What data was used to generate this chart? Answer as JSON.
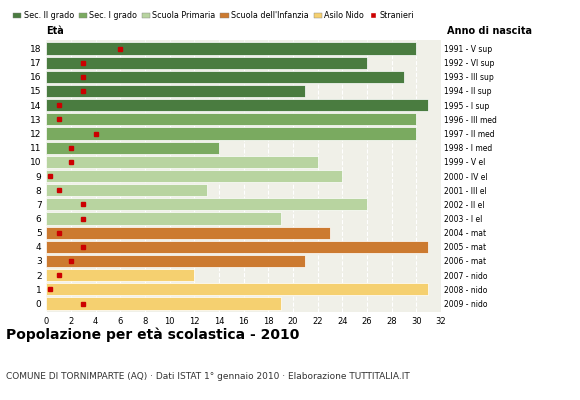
{
  "ages": [
    18,
    17,
    16,
    15,
    14,
    13,
    12,
    11,
    10,
    9,
    8,
    7,
    6,
    5,
    4,
    3,
    2,
    1,
    0
  ],
  "bar_values": [
    30,
    26,
    29,
    21,
    31,
    30,
    30,
    14,
    22,
    24,
    13,
    26,
    19,
    23,
    31,
    21,
    12,
    31,
    19
  ],
  "bar_colors": [
    "#4a7c40",
    "#4a7c40",
    "#4a7c40",
    "#4a7c40",
    "#4a7c40",
    "#7aaa60",
    "#7aaa60",
    "#7aaa60",
    "#b8d4a0",
    "#b8d4a0",
    "#b8d4a0",
    "#b8d4a0",
    "#b8d4a0",
    "#cc7a30",
    "#cc7a30",
    "#cc7a30",
    "#f5d070",
    "#f5d070",
    "#f5d070"
  ],
  "stranieri_values": [
    6,
    3,
    3,
    3,
    1,
    1,
    4,
    2,
    2,
    0.3,
    1,
    3,
    3,
    1,
    3,
    2,
    1,
    0.3,
    3
  ],
  "right_labels": [
    "1991 - V sup",
    "1992 - VI sup",
    "1993 - III sup",
    "1994 - II sup",
    "1995 - I sup",
    "1996 - III med",
    "1997 - II med",
    "1998 - I med",
    "1999 - V el",
    "2000 - IV el",
    "2001 - III el",
    "2002 - II el",
    "2003 - I el",
    "2004 - mat",
    "2005 - mat",
    "2006 - mat",
    "2007 - nido",
    "2008 - nido",
    "2009 - nido"
  ],
  "legend_labels": [
    "Sec. II grado",
    "Sec. I grado",
    "Scuola Primaria",
    "Scuola dell'Infanzia",
    "Asilo Nido",
    "Stranieri"
  ],
  "legend_colors": [
    "#4a7c40",
    "#7aaa60",
    "#b8d4a0",
    "#cc7a30",
    "#f5d070",
    "#cc0000"
  ],
  "title": "Popolazione per età scolastica - 2010",
  "subtitle": "COMUNE DI TORNIMPARTE (AQ) · Dati ISTAT 1° gennaio 2010 · Elaborazione TUTTITALIA.IT",
  "xlabel_eta": "Età",
  "xlabel_anno": "Anno di nascita",
  "xlim": [
    0,
    32
  ],
  "xticks": [
    0,
    2,
    4,
    6,
    8,
    10,
    12,
    14,
    16,
    18,
    20,
    22,
    24,
    26,
    28,
    30,
    32
  ],
  "bg_color": "#f0f0e8",
  "stranieri_color": "#cc0000"
}
